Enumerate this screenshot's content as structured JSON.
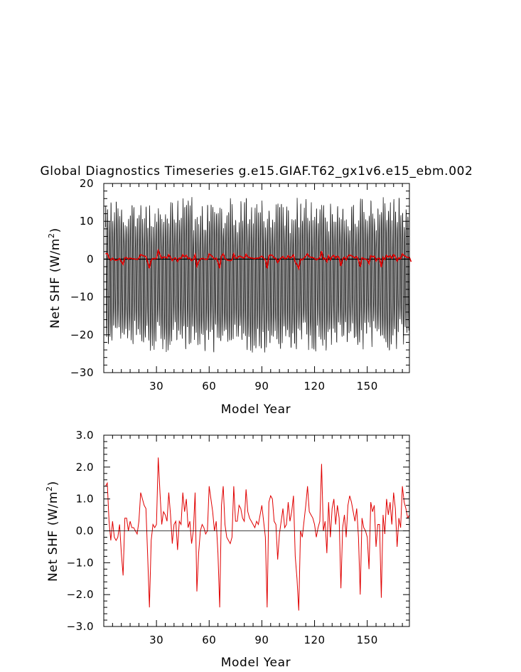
{
  "title": "Global Diagnostics Timeseries g.e15.GIAF.T62_gx1v6.e15_ebm.002",
  "chart_data": [
    {
      "type": "line",
      "xlabel": "Model Year",
      "ylabel": "Net SHF (W/m²)",
      "ylabel_main": "Net SHF (W/m",
      "ylabel_sup": "2",
      "ylabel_tail": ")",
      "xlim": [
        0,
        174
      ],
      "ylim": [
        -30,
        20
      ],
      "xticks": [
        30,
        60,
        90,
        120,
        150
      ],
      "xtick_labels": [
        "30",
        "60",
        "90",
        "120",
        "150"
      ],
      "yticks": [
        -30,
        -20,
        -10,
        0,
        10,
        20
      ],
      "ytick_labels": [
        "−30",
        "−20",
        "−10",
        "0",
        "10",
        "20"
      ],
      "zero_line": true,
      "series": [
        {
          "color": "#000000",
          "description": "monthly values, strong seasonal cycle",
          "seasonal_max_range": [
            8,
            16
          ],
          "seasonal_min_range": [
            -24,
            -17
          ]
        },
        {
          "color": "#e00000",
          "description": "annual mean",
          "values_ref": "annual_mean"
        }
      ]
    },
    {
      "type": "line",
      "xlabel": "Model Year",
      "ylabel": "Net SHF (W/m²)",
      "ylabel_main": "Net SHF (W/m",
      "ylabel_sup": "2",
      "ylabel_tail": ")",
      "xlim": [
        0,
        174
      ],
      "ylim": [
        -3,
        3
      ],
      "xticks": [
        30,
        60,
        90,
        120,
        150
      ],
      "xtick_labels": [
        "30",
        "60",
        "90",
        "120",
        "150"
      ],
      "yticks": [
        -3,
        -2,
        -1,
        0,
        1,
        2,
        3
      ],
      "ytick_labels": [
        "−3.0",
        "−2.0",
        "−1.0",
        "0.0",
        "1.0",
        "2.0",
        "3.0"
      ],
      "zero_line": true,
      "series": [
        {
          "color": "#e00000",
          "description": "annual mean",
          "values_ref": "annual_mean"
        }
      ]
    }
  ],
  "annual_mean": {
    "x_start": 1,
    "x_step": 1,
    "values": [
      1.4,
      1.5,
      0.3,
      -0.3,
      0.3,
      -0.2,
      -0.3,
      -0.2,
      0.2,
      -0.7,
      -1.4,
      0.4,
      0.4,
      0.0,
      0.3,
      0.1,
      0.1,
      0.0,
      -0.1,
      0.3,
      1.2,
      1.0,
      0.8,
      0.7,
      -0.8,
      -2.4,
      -0.3,
      0.2,
      0.1,
      0.2,
      2.3,
      1.2,
      0.2,
      0.6,
      0.5,
      0.3,
      1.2,
      0.5,
      -0.4,
      0.2,
      0.3,
      -0.6,
      0.3,
      0.2,
      1.2,
      0.6,
      1.0,
      0.1,
      0.3,
      -0.4,
      0.0,
      1.2,
      -1.9,
      -0.7,
      0.0,
      0.2,
      0.1,
      -0.1,
      0.0,
      1.4,
      1.0,
      0.6,
      0.0,
      0.3,
      -0.7,
      -2.4,
      0.8,
      1.4,
      0.2,
      -0.2,
      -0.3,
      -0.4,
      -0.2,
      1.4,
      0.3,
      0.3,
      0.8,
      0.7,
      0.4,
      0.3,
      1.3,
      0.6,
      0.4,
      0.3,
      0.2,
      0.1,
      0.3,
      0.2,
      0.5,
      0.8,
      0.3,
      -0.2,
      -2.4,
      0.9,
      1.1,
      1.0,
      0.3,
      0.2,
      -0.9,
      -0.1,
      0.3,
      0.7,
      0.1,
      0.2,
      0.9,
      0.3,
      0.6,
      1.1,
      -0.8,
      -1.5,
      -2.5,
      0.0,
      -0.2,
      0.3,
      0.8,
      1.4,
      0.6,
      0.5,
      0.4,
      0.2,
      -0.2,
      0.1,
      0.3,
      2.1,
      0.0,
      0.3,
      -0.7,
      0.9,
      -0.2,
      0.7,
      1.0,
      0.2,
      0.8,
      0.4,
      -1.8,
      0.1,
      0.5,
      -0.2,
      0.8,
      1.1,
      0.9,
      0.6,
      0.3,
      0.7,
      -0.2,
      -2.0,
      0.4,
      0.1,
      0.0,
      -0.2,
      -1.2,
      0.9,
      0.6,
      0.8,
      -0.5,
      0.2,
      0.2,
      -2.1,
      0.5,
      -0.1,
      1.0,
      0.5,
      0.9,
      0.2,
      1.2,
      0.7,
      -0.5,
      0.4,
      0.1,
      1.4,
      0.9,
      0.7,
      0.4,
      0.5,
      -0.7
    ]
  }
}
